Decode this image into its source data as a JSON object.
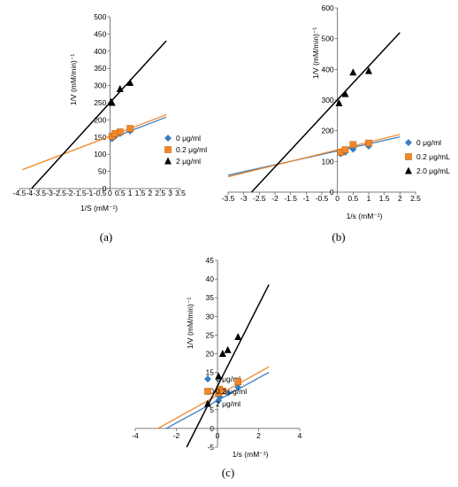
{
  "colors": {
    "blue": "#3a7ec2",
    "orange": "#f0882a",
    "black": "#000000"
  },
  "chart_data": [
    {
      "type": "scatter",
      "panel_label": "(a)",
      "xlabel": "1/S (mM⁻¹)",
      "ylabel": "1/V (mM/min)⁻¹",
      "xlim": [
        -4.5,
        3.5
      ],
      "ylim": [
        0,
        500
      ],
      "xticks": [
        "-4.5",
        "-4",
        "-3.5",
        "-3",
        "-2.5",
        "-2",
        "-1.5",
        "-1",
        "-0.5",
        "0",
        "0.5",
        "1",
        "1.5",
        "2",
        "2.5",
        "3",
        "3.5"
      ],
      "xtick_values": [
        -4.5,
        -4,
        -3.5,
        -3,
        -2.5,
        -2,
        -1.5,
        -1,
        -0.5,
        0,
        0.5,
        1,
        1.5,
        2,
        2.5,
        3,
        3.5
      ],
      "yticks": [
        "0",
        "50",
        "100",
        "150",
        "200",
        "250",
        "300",
        "350",
        "400",
        "450",
        "500"
      ],
      "ytick_values": [
        0,
        50,
        100,
        150,
        200,
        250,
        300,
        350,
        400,
        450,
        500
      ],
      "legend_position": "right",
      "series": [
        {
          "name": "0 μg/ml",
          "color": "blue",
          "marker": "diamond",
          "x": [
            0.1,
            0.25,
            0.5,
            1.0
          ],
          "y": [
            145,
            152,
            160,
            168
          ],
          "line": {
            "x": [
              0,
              2.8
            ],
            "y": [
              145,
              208
            ]
          }
        },
        {
          "name": "0.2 μg/ml",
          "color": "orange",
          "marker": "square",
          "x": [
            0.1,
            0.25,
            0.5,
            1.0
          ],
          "y": [
            152,
            160,
            165,
            175
          ],
          "line": {
            "x": [
              -4.35,
              2.8
            ],
            "y": [
              55,
              215
            ]
          }
        },
        {
          "name": "2 μg/ml",
          "color": "black",
          "marker": "triangle",
          "x": [
            0.05,
            0.1,
            0.5,
            1.0
          ],
          "y": [
            252,
            250,
            290,
            308
          ],
          "line": {
            "x": [
              -3.9,
              2.8
            ],
            "y": [
              0,
              430
            ]
          }
        }
      ]
    },
    {
      "type": "scatter",
      "panel_label": "(b)",
      "xlabel": "1/s (mM⁻¹)",
      "ylabel": "1/V (mM/min)⁻¹",
      "xlim": [
        -3.5,
        2.5
      ],
      "ylim": [
        0,
        600
      ],
      "xticks": [
        "-3.5",
        "-3",
        "-2.5",
        "-2",
        "-1.5",
        "-1",
        "-0.5",
        "0",
        "0.5",
        "1",
        "1.5",
        "2",
        "2.5"
      ],
      "xtick_values": [
        -3.5,
        -3,
        -2.5,
        -2,
        -1.5,
        -1,
        -0.5,
        0,
        0.5,
        1,
        1.5,
        2,
        2.5
      ],
      "yticks": [
        "0",
        "100",
        "200",
        "300",
        "400",
        "500",
        "600"
      ],
      "ytick_values": [
        0,
        100,
        200,
        300,
        400,
        500,
        600
      ],
      "legend_position": "right",
      "series": [
        {
          "name": "0 μg/ml",
          "color": "blue",
          "marker": "diamond",
          "x": [
            0.1,
            0.25,
            0.5,
            1.0
          ],
          "y": [
            125,
            130,
            140,
            150
          ],
          "line": {
            "x": [
              -3.5,
              2.0
            ],
            "y": [
              55,
              180
            ]
          }
        },
        {
          "name": "0.2 μg/mL",
          "color": "orange",
          "marker": "square",
          "x": [
            0.1,
            0.25,
            0.5,
            1.0
          ],
          "y": [
            130,
            138,
            155,
            160
          ],
          "line": {
            "x": [
              -3.5,
              2.0
            ],
            "y": [
              50,
              188
            ]
          }
        },
        {
          "name": "2.0 μg/mL",
          "color": "black",
          "marker": "triangle",
          "x": [
            0.05,
            0.25,
            0.5,
            1.0
          ],
          "y": [
            290,
            320,
            390,
            395
          ],
          "line": {
            "x": [
              -2.75,
              2.0
            ],
            "y": [
              0,
              520
            ]
          }
        }
      ]
    },
    {
      "type": "scatter",
      "panel_label": "(c)",
      "xlabel": "1/s (mM⁻¹)",
      "ylabel": "1/V (mM/min)⁻¹",
      "xlim": [
        -4,
        4
      ],
      "ylim": [
        -5,
        45
      ],
      "xticks": [
        "-4",
        "-2",
        "0",
        "2",
        "4"
      ],
      "xtick_values": [
        -4,
        -2,
        0,
        2,
        4
      ],
      "yticks": [
        "-5",
        "0",
        "5",
        "10",
        "15",
        "20",
        "25",
        "30",
        "35",
        "40",
        "45"
      ],
      "ytick_values": [
        -5,
        0,
        5,
        10,
        15,
        20,
        25,
        30,
        35,
        40,
        45
      ],
      "legend_position": "right",
      "series": [
        {
          "name": "0 μg/ml",
          "color": "blue",
          "marker": "diamond",
          "x": [
            0.05,
            0.1,
            0.5,
            1.0
          ],
          "y": [
            7.5,
            8.5,
            9.5,
            11
          ],
          "line": {
            "x": [
              -2.5,
              2.5
            ],
            "y": [
              0,
              15
            ]
          }
        },
        {
          "name": "0.2 μg/ml",
          "color": "orange",
          "marker": "square",
          "x": [
            0.05,
            0.1,
            0.25,
            1.0
          ],
          "y": [
            9.5,
            10.5,
            10,
            12.5
          ],
          "line": {
            "x": [
              -2.9,
              2.5
            ],
            "y": [
              0,
              16.5
            ]
          }
        },
        {
          "name": "2 μg/ml",
          "color": "black",
          "marker": "triangle",
          "x": [
            0.05,
            0.25,
            0.5,
            1.0
          ],
          "y": [
            14,
            20,
            21,
            24.5
          ],
          "line": {
            "x": [
              -1.5,
              2.5
            ],
            "y": [
              -5,
              38.5
            ]
          }
        }
      ]
    }
  ]
}
